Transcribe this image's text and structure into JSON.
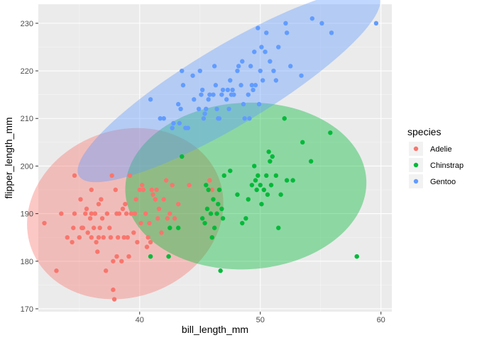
{
  "chart_data": {
    "type": "scatter",
    "title": "",
    "xlabel": "bill_length_mm",
    "ylabel": "flipper_length_mm",
    "xlim": [
      31.6,
      60.9
    ],
    "ylim": [
      169.4,
      234
    ],
    "xticks": [
      40,
      50,
      60
    ],
    "yticks": [
      170,
      180,
      190,
      200,
      210,
      220,
      230
    ],
    "legend_title": "species",
    "legend_position": "right",
    "grid": true,
    "series": [
      {
        "name": "Adelie",
        "color": "#F8766D",
        "ellipse": {
          "cx": 38.8,
          "cy": 190.0,
          "rx": 8.3,
          "ry": 17.5,
          "angle_deg": -21
        },
        "points": [
          [
            32.1,
            188
          ],
          [
            33.1,
            178
          ],
          [
            33.5,
            190
          ],
          [
            34.0,
            185
          ],
          [
            34.4,
            184
          ],
          [
            34.5,
            187
          ],
          [
            34.6,
            190
          ],
          [
            34.6,
            198
          ],
          [
            35.0,
            185
          ],
          [
            35.1,
            193
          ],
          [
            35.2,
            187
          ],
          [
            35.3,
            187
          ],
          [
            35.5,
            190
          ],
          [
            35.6,
            191
          ],
          [
            35.7,
            186
          ],
          [
            35.9,
            189
          ],
          [
            36.0,
            185
          ],
          [
            36.0,
            190
          ],
          [
            36.0,
            195
          ],
          [
            36.2,
            187
          ],
          [
            36.3,
            190
          ],
          [
            36.4,
            184
          ],
          [
            36.5,
            182
          ],
          [
            36.6,
            185
          ],
          [
            36.6,
            192
          ],
          [
            36.7,
            187
          ],
          [
            36.8,
            193
          ],
          [
            36.9,
            189
          ],
          [
            37.0,
            185
          ],
          [
            37.2,
            178
          ],
          [
            37.3,
            190
          ],
          [
            37.5,
            187
          ],
          [
            37.6,
            185
          ],
          [
            37.7,
            198
          ],
          [
            37.8,
            174
          ],
          [
            37.8,
            180
          ],
          [
            37.9,
            172
          ],
          [
            38.0,
            195
          ],
          [
            38.1,
            181
          ],
          [
            38.1,
            190
          ],
          [
            38.2,
            185
          ],
          [
            38.3,
            190
          ],
          [
            38.5,
            180
          ],
          [
            38.6,
            191
          ],
          [
            38.7,
            185
          ],
          [
            38.8,
            192
          ],
          [
            38.9,
            190
          ],
          [
            39.0,
            185
          ],
          [
            39.1,
            181
          ],
          [
            39.2,
            198
          ],
          [
            39.3,
            190
          ],
          [
            39.5,
            186
          ],
          [
            39.6,
            190
          ],
          [
            39.7,
            193
          ],
          [
            39.8,
            184
          ],
          [
            40.0,
            195
          ],
          [
            40.1,
            188
          ],
          [
            40.2,
            196
          ],
          [
            40.3,
            195
          ],
          [
            40.5,
            190
          ],
          [
            40.6,
            183
          ],
          [
            40.7,
            185
          ],
          [
            40.8,
            188
          ],
          [
            40.9,
            184
          ],
          [
            41.0,
            195
          ],
          [
            41.1,
            194
          ],
          [
            41.3,
            193
          ],
          [
            41.4,
            195
          ],
          [
            41.5,
            189
          ],
          [
            41.6,
            191
          ],
          [
            41.8,
            186
          ],
          [
            42.0,
            193
          ],
          [
            42.2,
            197
          ],
          [
            42.3,
            189
          ],
          [
            42.5,
            190
          ],
          [
            42.7,
            196
          ],
          [
            42.9,
            189
          ],
          [
            43.2,
            192
          ],
          [
            44.1,
            196
          ],
          [
            45.8,
            197
          ],
          [
            46.0,
            195
          ]
        ]
      },
      {
        "name": "Chinstrap",
        "color": "#00BA38",
        "ellipse": {
          "cx": 48.8,
          "cy": 195.8,
          "rx": 10.0,
          "ry": 17.5,
          "angle_deg": -3
        },
        "points": [
          [
            40.9,
            181
          ],
          [
            42.4,
            181
          ],
          [
            42.5,
            187
          ],
          [
            43.2,
            187
          ],
          [
            43.5,
            202
          ],
          [
            45.2,
            189
          ],
          [
            45.4,
            188
          ],
          [
            45.5,
            196
          ],
          [
            45.6,
            191
          ],
          [
            45.7,
            195
          ],
          [
            45.9,
            190
          ],
          [
            46.0,
            185
          ],
          [
            46.1,
            193
          ],
          [
            46.2,
            187
          ],
          [
            46.4,
            190
          ],
          [
            46.5,
            192
          ],
          [
            46.6,
            195
          ],
          [
            46.7,
            178
          ],
          [
            46.8,
            191
          ],
          [
            46.9,
            189
          ],
          [
            47.0,
            198
          ],
          [
            47.5,
            199
          ],
          [
            48.1,
            194
          ],
          [
            48.5,
            188
          ],
          [
            48.8,
            189
          ],
          [
            49.0,
            193
          ],
          [
            49.3,
            196
          ],
          [
            49.5,
            200
          ],
          [
            49.6,
            197
          ],
          [
            49.7,
            195
          ],
          [
            49.8,
            198
          ],
          [
            50.0,
            196
          ],
          [
            50.1,
            192
          ],
          [
            50.3,
            195
          ],
          [
            50.5,
            198
          ],
          [
            50.6,
            194
          ],
          [
            50.7,
            203
          ],
          [
            50.8,
            201
          ],
          [
            50.9,
            196
          ],
          [
            51.0,
            202
          ],
          [
            51.3,
            198
          ],
          [
            51.5,
            187
          ],
          [
            51.7,
            194
          ],
          [
            52.0,
            210
          ],
          [
            52.2,
            197
          ],
          [
            52.7,
            197
          ],
          [
            53.5,
            205
          ],
          [
            54.2,
            201
          ],
          [
            55.8,
            207
          ],
          [
            58.0,
            181
          ]
        ]
      },
      {
        "name": "Gentoo",
        "color": "#619CFF",
        "ellipse": {
          "cx": 47.4,
          "cy": 216.8,
          "rx": 14.5,
          "ry": 8.3,
          "angle_deg": -31
        },
        "points": [
          [
            40.9,
            214
          ],
          [
            41.7,
            210
          ],
          [
            42.0,
            210
          ],
          [
            42.7,
            208
          ],
          [
            42.8,
            209
          ],
          [
            43.2,
            213
          ],
          [
            43.3,
            209
          ],
          [
            43.4,
            212
          ],
          [
            43.5,
            220
          ],
          [
            43.6,
            217
          ],
          [
            43.8,
            208
          ],
          [
            44.0,
            208
          ],
          [
            44.4,
            219
          ],
          [
            44.5,
            214
          ],
          [
            44.9,
            212
          ],
          [
            45.0,
            220
          ],
          [
            45.1,
            215
          ],
          [
            45.2,
            216
          ],
          [
            45.3,
            210
          ],
          [
            45.4,
            211
          ],
          [
            45.5,
            212
          ],
          [
            45.7,
            214
          ],
          [
            45.8,
            215
          ],
          [
            46.1,
            215
          ],
          [
            46.2,
            221
          ],
          [
            46.3,
            217
          ],
          [
            46.4,
            212
          ],
          [
            46.5,
            210
          ],
          [
            46.6,
            210
          ],
          [
            46.8,
            215
          ],
          [
            46.9,
            216
          ],
          [
            47.2,
            214
          ],
          [
            47.3,
            216
          ],
          [
            47.4,
            212
          ],
          [
            47.5,
            218
          ],
          [
            47.6,
            215
          ],
          [
            47.7,
            216
          ],
          [
            47.8,
            215
          ],
          [
            48.1,
            220
          ],
          [
            48.2,
            221
          ],
          [
            48.4,
            217
          ],
          [
            48.5,
            222
          ],
          [
            48.6,
            213
          ],
          [
            48.7,
            210
          ],
          [
            49.0,
            215
          ],
          [
            49.1,
            210
          ],
          [
            49.2,
            221
          ],
          [
            49.3,
            217
          ],
          [
            49.4,
            216
          ],
          [
            49.5,
            224
          ],
          [
            49.6,
            217
          ],
          [
            49.8,
            229
          ],
          [
            49.9,
            213
          ],
          [
            50.0,
            220
          ],
          [
            50.1,
            225
          ],
          [
            50.2,
            218
          ],
          [
            50.4,
            224
          ],
          [
            50.5,
            228
          ],
          [
            50.8,
            222
          ],
          [
            51.1,
            220
          ],
          [
            51.3,
            218
          ],
          [
            51.5,
            225
          ],
          [
            52.1,
            230
          ],
          [
            52.2,
            228
          ],
          [
            52.5,
            221
          ],
          [
            53.4,
            219
          ],
          [
            54.3,
            231
          ],
          [
            55.1,
            230
          ],
          [
            55.9,
            228
          ],
          [
            59.6,
            230
          ]
        ]
      }
    ]
  }
}
